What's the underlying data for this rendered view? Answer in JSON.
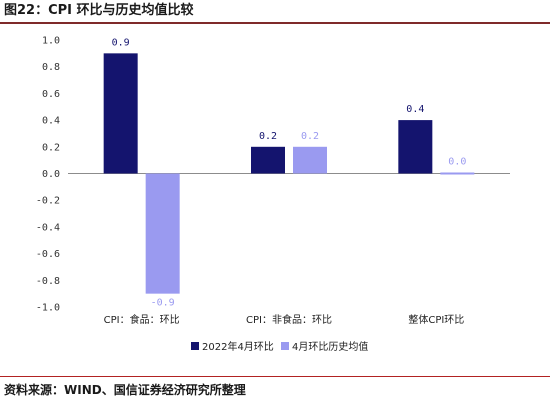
{
  "figure": {
    "title": "图22：CPI 环比与历史均值比较",
    "source": "资料来源：WIND、国信证券经济研究所整理"
  },
  "colors": {
    "series1": "#14146e",
    "series2": "#9a9af0",
    "axis": "#8c8c8c",
    "rule": "#7f2a2a"
  },
  "chart_data": {
    "type": "bar",
    "categories": [
      "CPI：食品：环比",
      "CPI：非食品：环比",
      "整体CPI环比"
    ],
    "series": [
      {
        "name": "2022年4月环比",
        "values": [
          0.9,
          0.2,
          0.4
        ],
        "labels": [
          "0.9",
          "0.2",
          "0.4"
        ]
      },
      {
        "name": "4月环比历史均值",
        "values": [
          -0.9,
          0.2,
          0.0
        ],
        "labels": [
          "-0.9",
          "0.2",
          "0.0"
        ]
      }
    ],
    "ylim": [
      -1.0,
      1.0
    ],
    "yticks": [
      "1.0",
      "0.8",
      "0.6",
      "0.4",
      "0.2",
      "0.0",
      "-0.2",
      "-0.4",
      "-0.6",
      "-0.8",
      "-1.0"
    ],
    "legend_position": "bottom",
    "grid": false
  }
}
